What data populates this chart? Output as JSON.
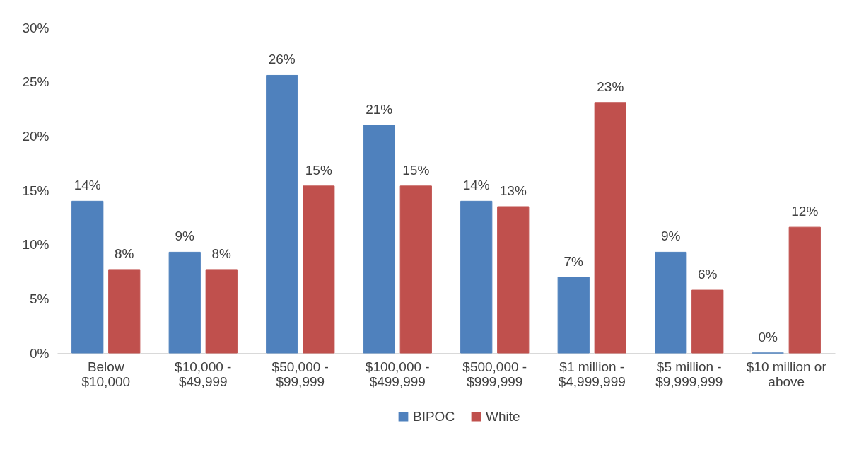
{
  "chart_data": {
    "type": "bar",
    "categories": [
      "Below\n$10,000",
      "$10,000 -\n$49,999",
      "$50,000 -\n$99,999",
      "$100,000 -\n$499,999",
      "$500,000 -\n$999,999",
      "$1 million -\n$4,999,999",
      "$5 million -\n$9,999,999",
      "$10 million or\nabove"
    ],
    "series": [
      {
        "name": "BIPOC",
        "color": "#4f81bd",
        "values": [
          14.0,
          9.3,
          25.6,
          21.0,
          14.0,
          7.0,
          9.3,
          0
        ],
        "value_labels": [
          "14%",
          "9%",
          "26%",
          "21%",
          "14%",
          "7%",
          "9%",
          "0%"
        ]
      },
      {
        "name": "White",
        "color": "#c0504d",
        "values": [
          7.7,
          7.7,
          15.4,
          15.4,
          13.5,
          23.1,
          5.8,
          11.6
        ],
        "value_labels": [
          "8%",
          "8%",
          "15%",
          "15%",
          "13%",
          "23%",
          "6%",
          "12%"
        ]
      }
    ],
    "ylim": [
      0,
      30
    ],
    "yticks": [
      {
        "value": 0,
        "label": "0%"
      },
      {
        "value": 5,
        "label": "5%"
      },
      {
        "value": 10,
        "label": "10%"
      },
      {
        "value": 15,
        "label": "15%"
      },
      {
        "value": 20,
        "label": "20%"
      },
      {
        "value": 25,
        "label": "25%"
      },
      {
        "value": 30,
        "label": "30%"
      }
    ],
    "grid": false,
    "legend": "bottom"
  }
}
